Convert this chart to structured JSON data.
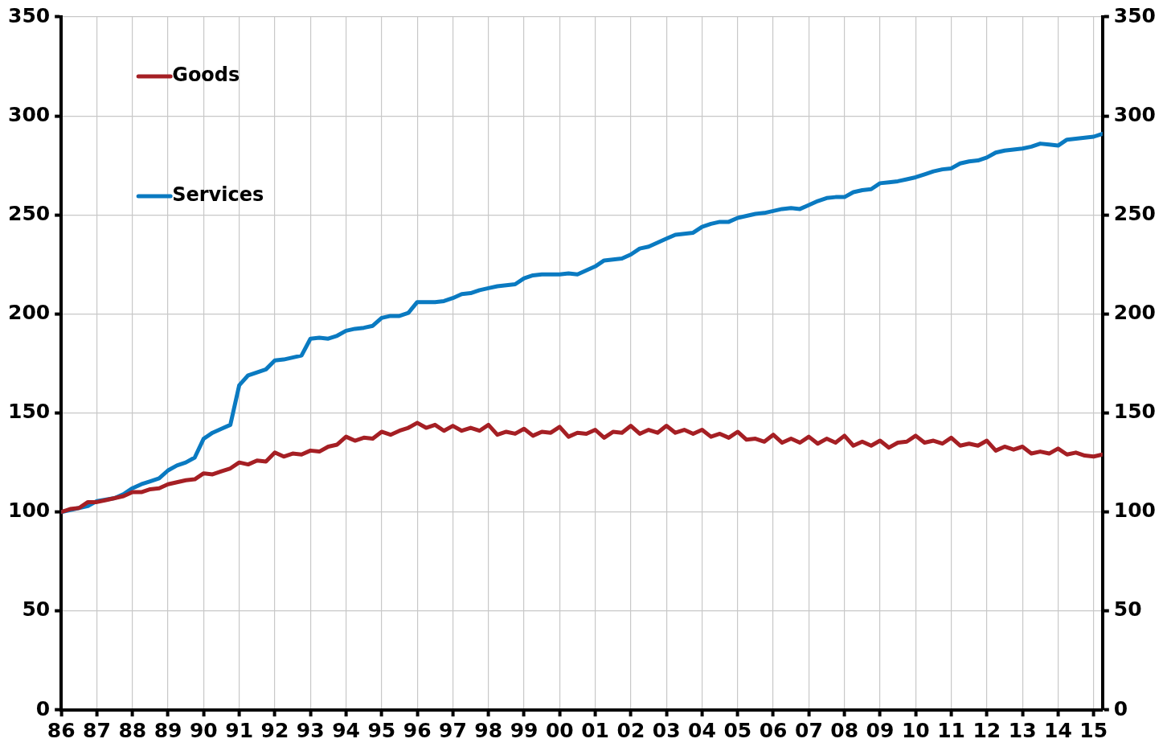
{
  "chart_data": {
    "type": "line",
    "xlim": [
      1986,
      2015.25
    ],
    "xticks": [
      {
        "value": 1986,
        "label": "86"
      },
      {
        "value": 1987,
        "label": "87"
      },
      {
        "value": 1988,
        "label": "88"
      },
      {
        "value": 1989,
        "label": "89"
      },
      {
        "value": 1990,
        "label": "90"
      },
      {
        "value": 1991,
        "label": "91"
      },
      {
        "value": 1992,
        "label": "92"
      },
      {
        "value": 1993,
        "label": "93"
      },
      {
        "value": 1994,
        "label": "94"
      },
      {
        "value": 1995,
        "label": "95"
      },
      {
        "value": 1996,
        "label": "96"
      },
      {
        "value": 1997,
        "label": "97"
      },
      {
        "value": 1998,
        "label": "98"
      },
      {
        "value": 1999,
        "label": "99"
      },
      {
        "value": 2000,
        "label": "00"
      },
      {
        "value": 2001,
        "label": "01"
      },
      {
        "value": 2002,
        "label": "02"
      },
      {
        "value": 2003,
        "label": "03"
      },
      {
        "value": 2004,
        "label": "04"
      },
      {
        "value": 2005,
        "label": "05"
      },
      {
        "value": 2006,
        "label": "06"
      },
      {
        "value": 2007,
        "label": "07"
      },
      {
        "value": 2008,
        "label": "08"
      },
      {
        "value": 2009,
        "label": "09"
      },
      {
        "value": 2010,
        "label": "10"
      },
      {
        "value": 2011,
        "label": "11"
      },
      {
        "value": 2012,
        "label": "12"
      },
      {
        "value": 2013,
        "label": "13"
      },
      {
        "value": 2014,
        "label": "14"
      },
      {
        "value": 2015,
        "label": "15"
      }
    ],
    "ylim": [
      0,
      350
    ],
    "yticks": [
      0,
      50,
      100,
      150,
      200,
      250,
      300,
      350
    ],
    "y2lim": [
      0,
      350
    ],
    "y2ticks": [
      0,
      50,
      100,
      150,
      200,
      250,
      300,
      350
    ],
    "grid": true,
    "legend": "top left",
    "marker": "none",
    "line_style": "solid",
    "series": [
      {
        "name": "Goods",
        "color": "#a51f24",
        "x": [
          1986,
          1986.25,
          1986.5,
          1986.75,
          1987,
          1987.25,
          1987.5,
          1987.75,
          1988,
          1988.25,
          1988.5,
          1988.75,
          1989,
          1989.25,
          1989.5,
          1989.75,
          1990,
          1990.25,
          1990.5,
          1990.75,
          1991,
          1991.25,
          1991.5,
          1991.75,
          1992,
          1992.25,
          1992.5,
          1992.75,
          1993,
          1993.25,
          1993.5,
          1993.75,
          1994,
          1994.25,
          1994.5,
          1994.75,
          1995,
          1995.25,
          1995.5,
          1995.75,
          1996,
          1996.25,
          1996.5,
          1996.75,
          1997,
          1997.25,
          1997.5,
          1997.75,
          1998,
          1998.25,
          1998.5,
          1998.75,
          1999,
          1999.25,
          1999.5,
          1999.75,
          2000,
          2000.25,
          2000.5,
          2000.75,
          2001,
          2001.25,
          2001.5,
          2001.75,
          2002,
          2002.25,
          2002.5,
          2002.75,
          2003,
          2003.25,
          2003.5,
          2003.75,
          2004,
          2004.25,
          2004.5,
          2004.75,
          2005,
          2005.25,
          2005.5,
          2005.75,
          2006,
          2006.25,
          2006.5,
          2006.75,
          2007,
          2007.25,
          2007.5,
          2007.75,
          2008,
          2008.25,
          2008.5,
          2008.75,
          2009,
          2009.25,
          2009.5,
          2009.75,
          2010,
          2010.25,
          2010.5,
          2010.75,
          2011,
          2011.25,
          2011.5,
          2011.75,
          2012,
          2012.25,
          2012.5,
          2012.75,
          2013,
          2013.25,
          2013.5,
          2013.75,
          2014,
          2014.25,
          2014.5,
          2014.75,
          2015,
          2015.25
        ],
        "values": [
          100,
          101.5,
          102,
          105,
          105,
          106,
          107,
          108,
          110,
          110,
          111.5,
          112,
          114,
          115,
          116,
          116.5,
          119.5,
          119,
          120.5,
          122,
          125,
          124,
          126,
          125.5,
          130,
          128,
          129.5,
          129,
          131,
          130.5,
          133,
          134,
          138,
          136,
          137.5,
          137,
          140.5,
          139,
          141,
          142.5,
          145,
          142.5,
          144,
          141,
          143.5,
          141,
          142.5,
          141,
          144,
          139,
          140.5,
          139.5,
          142,
          138.5,
          140.5,
          140,
          143,
          138,
          140,
          139.5,
          141.5,
          137.5,
          140.5,
          140,
          143.5,
          139.5,
          141.5,
          140,
          143.5,
          140,
          141.5,
          139.5,
          141.5,
          138,
          139.5,
          137.5,
          140.5,
          136.5,
          137,
          135.5,
          139,
          135,
          137,
          135,
          138,
          134.5,
          137,
          135,
          138.5,
          133.5,
          135.5,
          133.5,
          136,
          132.5,
          135,
          135.5,
          138.5,
          135,
          136,
          134.5,
          137.5,
          133.5,
          134.5,
          133.5,
          136,
          131,
          133,
          131.5,
          133,
          129.5,
          130.5,
          129.5,
          132,
          129,
          130,
          128.5,
          128,
          129
        ]
      },
      {
        "name": "Services",
        "color": "#0a7ac1",
        "x": [
          1986,
          1986.5,
          1986.75,
          1987,
          1987.5,
          1987.75,
          1988,
          1988.25,
          1988.5,
          1988.75,
          1989,
          1989.25,
          1989.5,
          1989.75,
          1990,
          1990.25,
          1990.5,
          1990.75,
          1991,
          1991.25,
          1991.5,
          1991.75,
          1992,
          1992.25,
          1992.5,
          1992.75,
          1993,
          1993.25,
          1993.5,
          1993.75,
          1994,
          1994.25,
          1994.5,
          1994.75,
          1995,
          1995.25,
          1995.5,
          1995.75,
          1996,
          1996.25,
          1996.5,
          1996.75,
          1997,
          1997.25,
          1997.5,
          1997.75,
          1998,
          1998.25,
          1998.5,
          1998.75,
          1999,
          1999.25,
          1999.5,
          1999.75,
          2000,
          2000.25,
          2000.5,
          2000.75,
          2001,
          2001.25,
          2001.5,
          2001.75,
          2002,
          2002.25,
          2002.5,
          2002.75,
          2003,
          2003.25,
          2003.5,
          2003.75,
          2004,
          2004.25,
          2004.5,
          2004.75,
          2005,
          2005.25,
          2005.5,
          2005.75,
          2006,
          2006.25,
          2006.5,
          2006.75,
          2007,
          2007.25,
          2007.5,
          2007.75,
          2008,
          2008.25,
          2008.5,
          2008.75,
          2009,
          2009.25,
          2009.5,
          2009.75,
          2010,
          2010.25,
          2010.5,
          2010.75,
          2011,
          2011.25,
          2011.5,
          2011.75,
          2012,
          2012.25,
          2012.5,
          2012.75,
          2013,
          2013.25,
          2013.5,
          2013.75,
          2014,
          2014.25,
          2014.5,
          2014.75,
          2015,
          2015.25
        ],
        "values": [
          100,
          102,
          103,
          105.5,
          107,
          109,
          112,
          114,
          115.5,
          117,
          121,
          123.5,
          125,
          127.5,
          137,
          140,
          142,
          144,
          164,
          169,
          170.5,
          172,
          176.5,
          177,
          178,
          179,
          187.5,
          188,
          187.5,
          189,
          191.5,
          192.5,
          193,
          194,
          198,
          199,
          199,
          200.5,
          206,
          206,
          206,
          206.5,
          208,
          210,
          210.5,
          212,
          213,
          214,
          214.5,
          215,
          218,
          219.5,
          220,
          220,
          220,
          220.5,
          220,
          222,
          224,
          227,
          227.5,
          228,
          230,
          233,
          234,
          236,
          238,
          240,
          240.5,
          241,
          244,
          245.5,
          246.5,
          246.5,
          248.5,
          249.5,
          250.5,
          251,
          252,
          253,
          253.5,
          253,
          255,
          257,
          258.5,
          259,
          259,
          261.5,
          262.5,
          263,
          266,
          266.5,
          267,
          268,
          269,
          270.5,
          272,
          273,
          273.5,
          276,
          277,
          277.5,
          279,
          281.5,
          282.5,
          283,
          283.5,
          284.5,
          286,
          285.5,
          285,
          288,
          288.5,
          289,
          289.5,
          291
        ]
      }
    ]
  }
}
